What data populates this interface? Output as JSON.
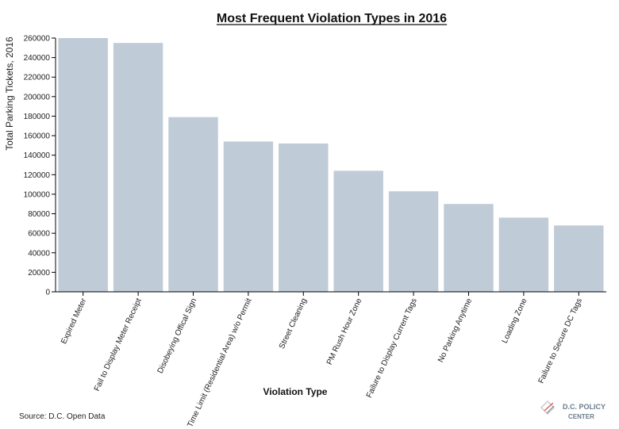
{
  "chart_data": {
    "type": "bar",
    "title": "Most Frequent Violation Types in 2016",
    "xlabel": "Violation Type",
    "ylabel": "Total Parking Tickets, 2016",
    "ylim": [
      0,
      260000
    ],
    "yticks": [
      0,
      20000,
      40000,
      60000,
      80000,
      100000,
      120000,
      140000,
      160000,
      180000,
      200000,
      220000,
      240000,
      260000
    ],
    "categories": [
      "Expired Meter",
      "Fail to Display Meter Receipt",
      "Disobeying Offical Sign",
      "Time Limit (Residential Area) w/o Permit",
      "Street Cleaning",
      "PM Rush Hour Zone",
      "Failure to Display Current Tags",
      "No Parking Anytime",
      "Loading Zone",
      "Failure to Secure DC Tags"
    ],
    "values": [
      261000,
      255000,
      179000,
      154000,
      152000,
      124000,
      103000,
      90000,
      76000,
      68000
    ],
    "bar_color": "#bfcbd7",
    "grid": false,
    "legend": "none"
  },
  "footer": {
    "source": "Source: D.C. Open Data",
    "logo_line1": "D.C. POLICY",
    "logo_line2": "CENTER",
    "logo_color": "#6b7b8c"
  }
}
